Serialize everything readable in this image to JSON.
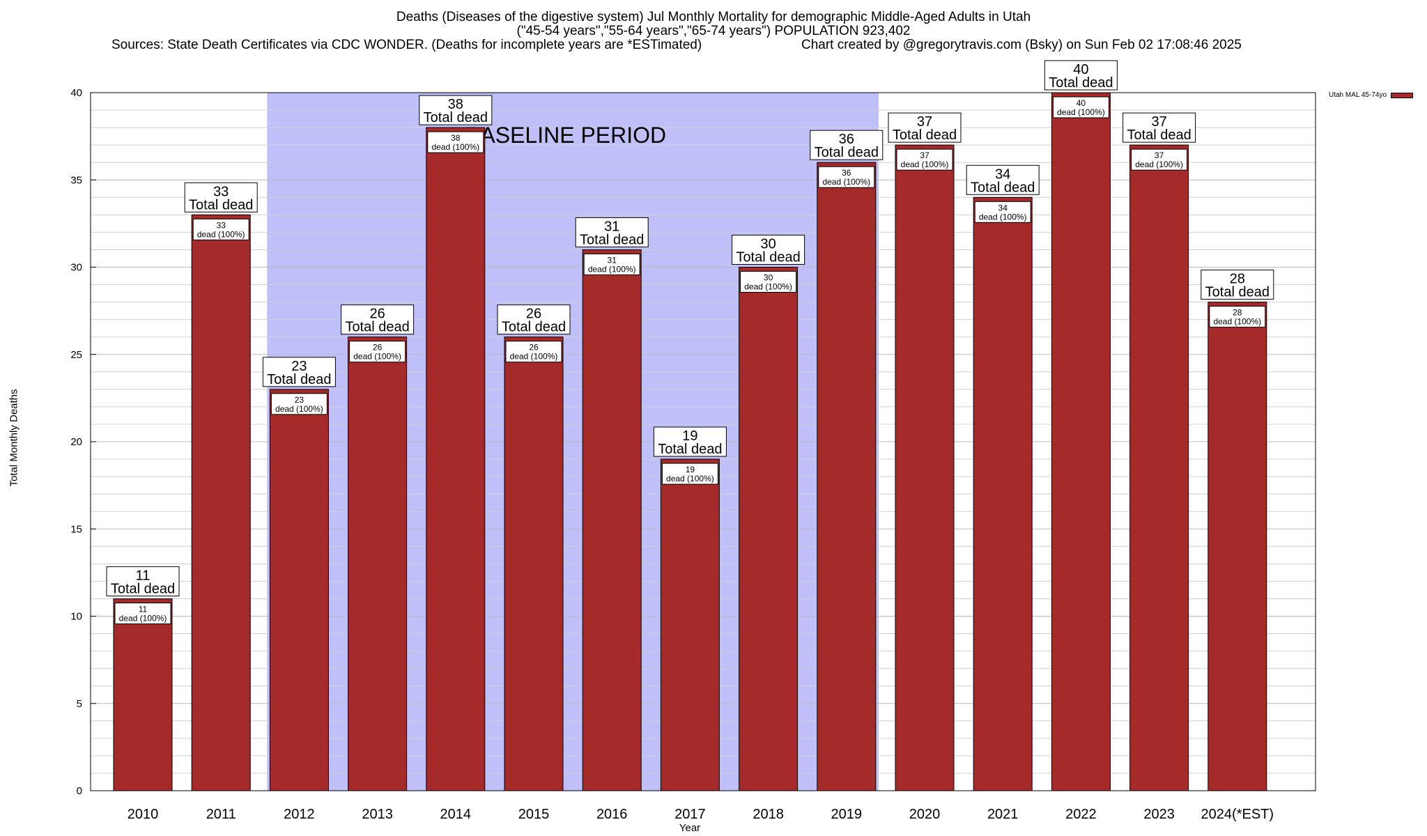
{
  "header": {
    "title_line1": "Deaths (Diseases of the digestive system) Jul Monthly Mortality for demographic Middle-Aged Adults in Utah",
    "title_line2": "(\"45-54 years\",\"55-64 years\",\"65-74 years\") POPULATION 923,402",
    "sources": "Sources: State Death Certificates via CDC WONDER. (Deaths for incomplete years are *ESTimated)",
    "credit": "Chart created by @gregorytravis.com (Bsky) on Sun Feb 02 17:08:46 2025"
  },
  "chart_data": {
    "type": "bar",
    "xlabel": "Year",
    "ylabel": "Total Monthly Deaths",
    "ylim": [
      0,
      40
    ],
    "yticks": [
      0,
      5,
      10,
      15,
      20,
      25,
      30,
      35,
      40
    ],
    "grid": true,
    "categories": [
      "2010",
      "2011",
      "2012",
      "2013",
      "2014",
      "2015",
      "2016",
      "2017",
      "2018",
      "2019",
      "2020",
      "2021",
      "2022",
      "2023",
      "2024(*EST)"
    ],
    "series": [
      {
        "name": "Utah MAL 45-74yo",
        "color": "#a52a2a",
        "values": [
          11,
          33,
          23,
          26,
          38,
          26,
          31,
          19,
          30,
          36,
          37,
          34,
          40,
          37,
          28
        ]
      }
    ],
    "bar_label_suffix": "Total dead",
    "inner_label_suffix": "dead (100%)",
    "baseline": {
      "label": "BASELINE PERIOD",
      "start": "2012",
      "end": "2019",
      "color": "#bfbffa"
    },
    "legend_position": "top-right"
  }
}
